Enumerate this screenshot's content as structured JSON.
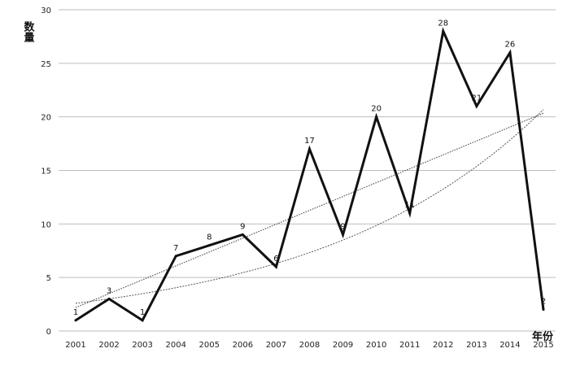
{
  "chart_data": {
    "type": "line",
    "title": "",
    "xlabel": "年份",
    "ylabel": "数量",
    "x": [
      "2001",
      "2002",
      "2003",
      "2004",
      "2005",
      "2006",
      "2007",
      "2008",
      "2009",
      "2010",
      "2011",
      "2012",
      "2013",
      "2014",
      "2015"
    ],
    "series": [
      {
        "name": "数量",
        "values": [
          1,
          3,
          1,
          7,
          8,
          9,
          6,
          17,
          9,
          20,
          11,
          28,
          21,
          26,
          2
        ],
        "color": "#111111"
      }
    ],
    "trendlines": [
      {
        "type": "linear",
        "style": "dotted",
        "color": "#555555"
      },
      {
        "type": "exponential",
        "style": "dotted",
        "color": "#555555"
      }
    ],
    "yticks": [
      0,
      5,
      10,
      15,
      20,
      25,
      30
    ],
    "ylim": [
      0,
      30
    ],
    "grid": true,
    "data_labels": true,
    "legend": "none"
  }
}
